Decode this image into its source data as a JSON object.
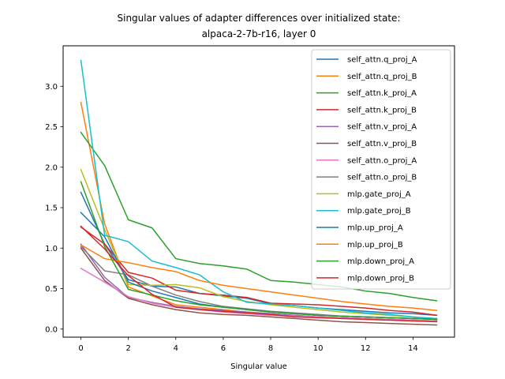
{
  "chart_data": {
    "type": "line",
    "title_line1": "Singular values of adapter differences over initialized state:",
    "title_line2": "alpaca-2-7b-r16, layer 0",
    "xlabel": "Singular value",
    "ylabel": "",
    "xlim": [
      -0.75,
      15.75
    ],
    "ylim": [
      -0.1,
      3.5
    ],
    "xticks": [
      0,
      2,
      4,
      6,
      8,
      10,
      12,
      14
    ],
    "yticks": [
      0.0,
      0.5,
      1.0,
      1.5,
      2.0,
      2.5,
      3.0
    ],
    "ytick_labels": [
      "0.0",
      "0.5",
      "1.0",
      "1.5",
      "2.0",
      "2.5",
      "3.0"
    ],
    "grid": false,
    "legend_placement": "top-right",
    "x": [
      0,
      1,
      2,
      3,
      4,
      5,
      6,
      7,
      8,
      9,
      10,
      11,
      12,
      13,
      14,
      15
    ],
    "series": [
      {
        "name": "self_attn.q_proj_A",
        "color": "#1f77b4",
        "values": [
          1.69,
          1.05,
          0.61,
          0.53,
          0.52,
          0.44,
          0.41,
          0.38,
          0.31,
          0.29,
          0.26,
          0.24,
          0.22,
          0.2,
          0.19,
          0.17
        ]
      },
      {
        "name": "self_attn.q_proj_B",
        "color": "#ff7f0e",
        "values": [
          2.8,
          1.3,
          0.52,
          0.41,
          0.3,
          0.27,
          0.24,
          0.21,
          0.19,
          0.17,
          0.15,
          0.14,
          0.13,
          0.12,
          0.11,
          0.1
        ]
      },
      {
        "name": "self_attn.k_proj_A",
        "color": "#2ca02c",
        "values": [
          2.43,
          2.02,
          1.35,
          1.25,
          0.87,
          0.81,
          0.78,
          0.74,
          0.6,
          0.58,
          0.55,
          0.52,
          0.47,
          0.44,
          0.39,
          0.35
        ]
      },
      {
        "name": "self_attn.k_proj_B",
        "color": "#d62728",
        "values": [
          1.26,
          1.05,
          0.7,
          0.63,
          0.48,
          0.44,
          0.42,
          0.39,
          0.32,
          0.31,
          0.3,
          0.28,
          0.26,
          0.23,
          0.21,
          0.17
        ]
      },
      {
        "name": "self_attn.v_proj_A",
        "color": "#9467bd",
        "values": [
          1.05,
          0.64,
          0.39,
          0.33,
          0.28,
          0.25,
          0.23,
          0.21,
          0.19,
          0.17,
          0.15,
          0.14,
          0.13,
          0.12,
          0.11,
          0.1
        ]
      },
      {
        "name": "self_attn.v_proj_B",
        "color": "#8c564b",
        "values": [
          1.0,
          0.6,
          0.38,
          0.3,
          0.24,
          0.2,
          0.18,
          0.17,
          0.15,
          0.13,
          0.11,
          0.09,
          0.08,
          0.07,
          0.06,
          0.05
        ]
      },
      {
        "name": "self_attn.o_proj_A",
        "color": "#e377c2",
        "values": [
          0.75,
          0.58,
          0.4,
          0.32,
          0.27,
          0.24,
          0.21,
          0.19,
          0.17,
          0.16,
          0.15,
          0.14,
          0.13,
          0.12,
          0.11,
          0.1
        ]
      },
      {
        "name": "self_attn.o_proj_B",
        "color": "#7f7f7f",
        "values": [
          1.02,
          0.72,
          0.67,
          0.53,
          0.42,
          0.34,
          0.28,
          0.25,
          0.22,
          0.2,
          0.18,
          0.16,
          0.15,
          0.14,
          0.13,
          0.12
        ]
      },
      {
        "name": "mlp.gate_proj_A",
        "color": "#bcbd22",
        "values": [
          1.97,
          1.23,
          0.55,
          0.54,
          0.55,
          0.51,
          0.4,
          0.34,
          0.3,
          0.27,
          0.24,
          0.21,
          0.19,
          0.17,
          0.15,
          0.13
        ]
      },
      {
        "name": "mlp.gate_proj_B",
        "color": "#17becf",
        "values": [
          3.32,
          1.16,
          1.08,
          0.84,
          0.76,
          0.67,
          0.46,
          0.33,
          0.31,
          0.29,
          0.26,
          0.23,
          0.2,
          0.18,
          0.15,
          0.13
        ]
      },
      {
        "name": "mlp.up_proj_A",
        "color": "#1f77b4",
        "values": [
          1.44,
          1.14,
          0.58,
          0.47,
          0.39,
          0.31,
          0.27,
          0.24,
          0.21,
          0.19,
          0.17,
          0.16,
          0.15,
          0.14,
          0.13,
          0.12
        ]
      },
      {
        "name": "mlp.up_proj_B",
        "color": "#ff7f0e",
        "values": [
          1.04,
          0.87,
          0.82,
          0.76,
          0.71,
          0.6,
          0.54,
          0.5,
          0.46,
          0.42,
          0.38,
          0.34,
          0.31,
          0.28,
          0.26,
          0.23
        ]
      },
      {
        "name": "mlp.down_proj_A",
        "color": "#2ca02c",
        "values": [
          1.82,
          1.02,
          0.49,
          0.42,
          0.35,
          0.3,
          0.27,
          0.24,
          0.21,
          0.19,
          0.17,
          0.16,
          0.15,
          0.14,
          0.13,
          0.12
        ]
      },
      {
        "name": "mlp.down_proj_B",
        "color": "#d62728",
        "values": [
          1.27,
          0.99,
          0.66,
          0.43,
          0.27,
          0.24,
          0.22,
          0.2,
          0.18,
          0.15,
          0.14,
          0.13,
          0.12,
          0.11,
          0.1,
          0.09
        ]
      }
    ]
  }
}
